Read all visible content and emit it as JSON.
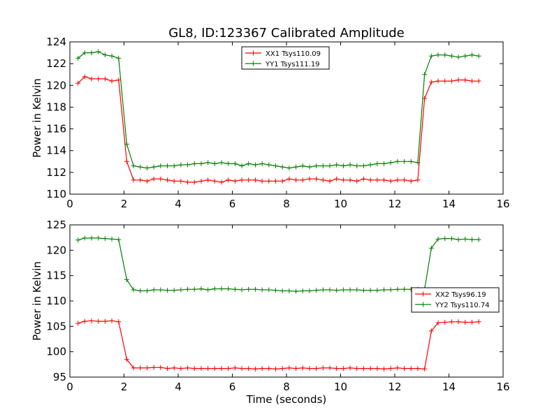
{
  "title": "GL8, ID:123367 Calibrated Amplitude",
  "colors": {
    "red": "#ff0000",
    "green": "#008000"
  },
  "chart_data": [
    {
      "type": "line",
      "title": "GL8, ID:123367 Calibrated Amplitude",
      "xlabel": "",
      "ylabel": "Power in Kelvin",
      "xlim": [
        0,
        16
      ],
      "ylim": [
        110,
        124
      ],
      "xticks": [
        "0",
        "2",
        "4",
        "6",
        "8",
        "10",
        "12",
        "14",
        "16"
      ],
      "yticks": [
        "110",
        "112",
        "114",
        "116",
        "118",
        "120",
        "122",
        "124"
      ],
      "grid": false,
      "legend_position": "top-center",
      "x": [
        0.3,
        0.55,
        0.8,
        1.05,
        1.3,
        1.55,
        1.8,
        2.1,
        2.35,
        2.6,
        2.85,
        3.1,
        3.35,
        3.6,
        3.85,
        4.1,
        4.35,
        4.6,
        4.85,
        5.1,
        5.35,
        5.6,
        5.85,
        6.1,
        6.35,
        6.6,
        6.85,
        7.1,
        7.35,
        7.6,
        7.85,
        8.1,
        8.35,
        8.6,
        8.85,
        9.1,
        9.35,
        9.6,
        9.85,
        10.1,
        10.35,
        10.6,
        10.85,
        11.1,
        11.35,
        11.6,
        11.85,
        12.1,
        12.35,
        12.6,
        12.85,
        13.1,
        13.35,
        13.6,
        13.85,
        14.1,
        14.35,
        14.6,
        14.85,
        15.1
      ],
      "series": [
        {
          "name": "XX1 Tsys110.09",
          "color": "#ff0000",
          "values": [
            120.2,
            120.8,
            120.6,
            120.6,
            120.6,
            120.4,
            120.5,
            113.0,
            111.3,
            111.3,
            111.2,
            111.4,
            111.4,
            111.3,
            111.2,
            111.2,
            111.1,
            111.1,
            111.2,
            111.3,
            111.2,
            111.1,
            111.3,
            111.2,
            111.3,
            111.3,
            111.3,
            111.2,
            111.2,
            111.2,
            111.2,
            111.4,
            111.3,
            111.3,
            111.4,
            111.4,
            111.3,
            111.2,
            111.4,
            111.3,
            111.3,
            111.2,
            111.4,
            111.3,
            111.3,
            111.3,
            111.2,
            111.3,
            111.3,
            111.2,
            111.3,
            118.8,
            120.3,
            120.4,
            120.4,
            120.4,
            120.5,
            120.5,
            120.4,
            120.4
          ]
        },
        {
          "name": "YY1 Tsys111.19",
          "color": "#008000",
          "values": [
            122.5,
            123.0,
            123.0,
            123.1,
            122.8,
            122.7,
            122.5,
            114.6,
            112.6,
            112.5,
            112.4,
            112.5,
            112.6,
            112.6,
            112.6,
            112.7,
            112.7,
            112.8,
            112.8,
            112.9,
            112.8,
            112.9,
            112.8,
            112.8,
            112.6,
            112.8,
            112.7,
            112.8,
            112.7,
            112.6,
            112.5,
            112.4,
            112.5,
            112.6,
            112.5,
            112.6,
            112.6,
            112.6,
            112.7,
            112.6,
            112.7,
            112.6,
            112.6,
            112.7,
            112.8,
            112.8,
            112.9,
            113.0,
            113.0,
            113.0,
            112.9,
            121.0,
            122.7,
            122.8,
            122.8,
            122.7,
            122.6,
            122.7,
            122.8,
            122.7
          ]
        }
      ]
    },
    {
      "type": "line",
      "title": "",
      "xlabel": "Time (seconds)",
      "ylabel": "Power in Kelvin",
      "xlim": [
        0,
        16
      ],
      "ylim": [
        95,
        125
      ],
      "xticks": [
        "0",
        "2",
        "4",
        "6",
        "8",
        "10",
        "12",
        "14",
        "16"
      ],
      "yticks": [
        "95",
        "100",
        "105",
        "110",
        "115",
        "120",
        "125"
      ],
      "grid": false,
      "legend_position": "center-right",
      "x": [
        0.3,
        0.55,
        0.8,
        1.05,
        1.3,
        1.55,
        1.8,
        2.1,
        2.35,
        2.6,
        2.85,
        3.1,
        3.35,
        3.6,
        3.85,
        4.1,
        4.35,
        4.6,
        4.85,
        5.1,
        5.35,
        5.6,
        5.85,
        6.1,
        6.35,
        6.6,
        6.85,
        7.1,
        7.35,
        7.6,
        7.85,
        8.1,
        8.35,
        8.6,
        8.85,
        9.1,
        9.35,
        9.6,
        9.85,
        10.1,
        10.35,
        10.6,
        10.85,
        11.1,
        11.35,
        11.6,
        11.85,
        12.1,
        12.35,
        12.6,
        12.85,
        13.1,
        13.35,
        13.6,
        13.85,
        14.1,
        14.35,
        14.6,
        14.85,
        15.1
      ],
      "series": [
        {
          "name": "XX2 Tsys96.19",
          "color": "#ff0000",
          "values": [
            105.6,
            106.0,
            106.1,
            106.0,
            106.0,
            106.1,
            105.9,
            98.5,
            96.8,
            96.8,
            96.8,
            96.9,
            96.9,
            96.7,
            96.8,
            96.7,
            96.8,
            96.7,
            96.7,
            96.7,
            96.7,
            96.7,
            96.7,
            96.8,
            96.7,
            96.7,
            96.6,
            96.7,
            96.7,
            96.6,
            96.7,
            96.8,
            96.7,
            96.8,
            96.7,
            96.7,
            96.8,
            96.8,
            96.7,
            96.7,
            96.8,
            96.7,
            96.7,
            96.7,
            96.7,
            96.6,
            96.7,
            96.8,
            96.7,
            96.7,
            96.7,
            96.6,
            104.1,
            105.7,
            105.8,
            105.9,
            105.9,
            105.8,
            105.8,
            105.9
          ]
        },
        {
          "name": "YY2 Tsys110.74",
          "color": "#008000",
          "values": [
            122.0,
            122.4,
            122.4,
            122.4,
            122.3,
            122.2,
            122.1,
            114.2,
            112.2,
            112.0,
            112.0,
            112.2,
            112.2,
            112.1,
            112.1,
            112.2,
            112.3,
            112.3,
            112.4,
            112.2,
            112.4,
            112.4,
            112.4,
            112.3,
            112.2,
            112.3,
            112.3,
            112.2,
            112.2,
            112.1,
            112.0,
            112.0,
            111.9,
            112.0,
            112.0,
            112.1,
            112.2,
            112.2,
            112.1,
            112.2,
            112.2,
            112.2,
            112.1,
            112.1,
            112.1,
            112.2,
            112.2,
            112.3,
            112.3,
            112.3,
            112.3,
            112.3,
            120.4,
            122.2,
            122.3,
            122.3,
            122.1,
            122.2,
            122.1,
            122.1
          ]
        }
      ]
    }
  ]
}
